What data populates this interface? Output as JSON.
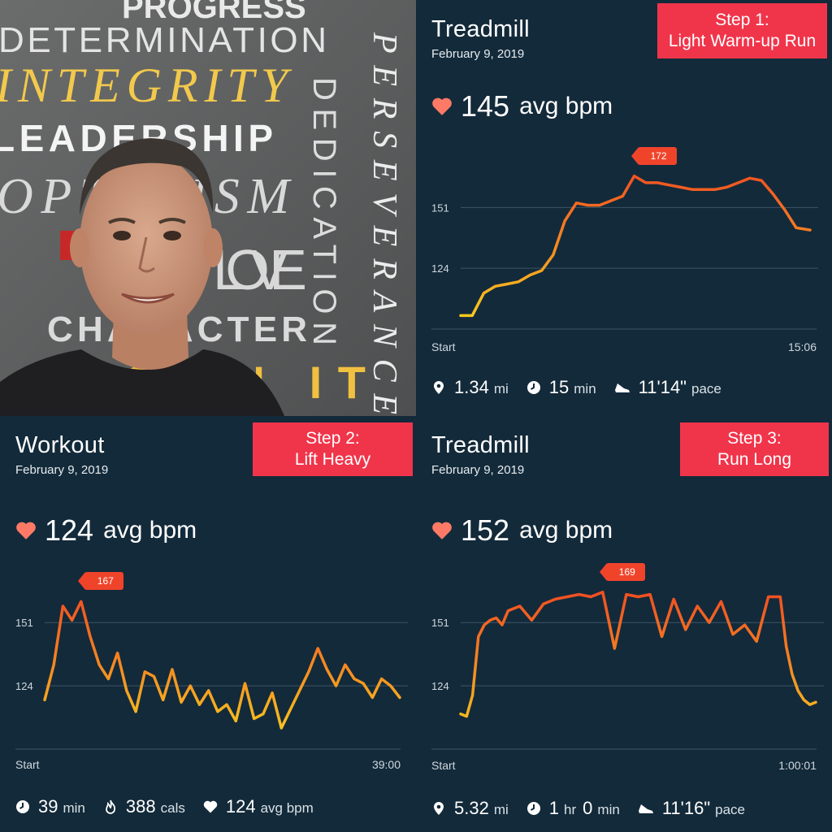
{
  "photo": {
    "words": [
      "PROGRESS",
      "DETERMINATION",
      "INTEGRITY",
      "LEADERSHIP",
      "OPTIMISM",
      "PERSEVERANCE",
      "DEDICATION",
      "LOVE",
      "CHARACTER",
      "OWN IT"
    ]
  },
  "panels": [
    {
      "title": "Treadmill",
      "date": "February 9, 2019",
      "badge": [
        "Step 1:",
        "Light Warm-up Run"
      ],
      "avg_bpm": "145",
      "avg_unit": "avg bpm",
      "peak": "172",
      "y_ticks": [
        "151",
        "124"
      ],
      "x_start": "Start",
      "x_end": "15:06",
      "stats": [
        {
          "icon": "location-pin-icon",
          "value": "1.34",
          "unit": "mi"
        },
        {
          "icon": "clock-icon",
          "value": "15",
          "unit": "min"
        },
        {
          "icon": "shoe-icon",
          "value": "11'14\"",
          "unit": "pace"
        }
      ],
      "chart_data": {
        "type": "line",
        "x": [
          0,
          0.5,
          1,
          1.5,
          2,
          2.5,
          3,
          3.5,
          4,
          4.5,
          5,
          5.5,
          6,
          6.5,
          7,
          7.5,
          8,
          8.5,
          9,
          9.5,
          10,
          10.5,
          11,
          11.5,
          12,
          12.5,
          13,
          13.5,
          14,
          14.5,
          15.1
        ],
        "y": [
          103,
          103,
          113,
          116,
          117,
          118,
          121,
          123,
          130,
          145,
          153,
          152,
          152,
          154,
          156,
          165,
          162,
          162,
          161,
          160,
          159,
          159,
          159,
          160,
          162,
          164,
          163,
          157,
          150,
          142,
          141
        ],
        "xlim": [
          0,
          15.1
        ],
        "ylim": [
          97,
          180
        ],
        "y_ticks": [
          151,
          124
        ]
      }
    },
    {
      "title": "Workout",
      "date": "February 9, 2019",
      "badge": [
        "Step 2:",
        "Lift Heavy"
      ],
      "avg_bpm": "124",
      "avg_unit": "avg bpm",
      "peak": "167",
      "y_ticks": [
        "151",
        "124"
      ],
      "x_start": "Start",
      "x_end": "39:00",
      "stats": [
        {
          "icon": "clock-icon",
          "value": "39",
          "unit": "min"
        },
        {
          "icon": "flame-icon",
          "value": "388",
          "unit": "cals"
        },
        {
          "icon": "heart-outline-icon",
          "value": "124",
          "unit": "avg bpm"
        }
      ],
      "chart_data": {
        "type": "line",
        "x": [
          0,
          1,
          2,
          3,
          4,
          5,
          6,
          7,
          8,
          9,
          10,
          11,
          12,
          13,
          14,
          15,
          16,
          17,
          18,
          19,
          20,
          21,
          22,
          23,
          24,
          25,
          26,
          27,
          28,
          29,
          30,
          31,
          32,
          33,
          34,
          35,
          36,
          37,
          38,
          39
        ],
        "y": [
          118,
          133,
          158,
          152,
          160,
          145,
          133,
          127,
          138,
          122,
          113,
          130,
          128,
          118,
          131,
          117,
          124,
          116,
          122,
          113,
          116,
          109,
          125,
          110,
          112,
          121,
          106,
          114,
          122,
          130,
          140,
          131,
          124,
          133,
          127,
          125,
          119,
          127,
          124,
          119
        ],
        "xlim": [
          0,
          39
        ],
        "ylim": [
          97,
          175
        ],
        "y_ticks": [
          151,
          124
        ]
      }
    },
    {
      "title": "Treadmill",
      "date": "February 9, 2019",
      "badge": [
        "Step 3:",
        "Run Long"
      ],
      "avg_bpm": "152",
      "avg_unit": "avg bpm",
      "peak": "169",
      "y_ticks": [
        "151",
        "124"
      ],
      "x_start": "Start",
      "x_end": "1:00:01",
      "stats": [
        {
          "icon": "location-pin-icon",
          "value": "5.32",
          "unit": "mi"
        },
        {
          "icon": "clock-icon",
          "value": "1",
          "unit": "hr",
          "value2": "0",
          "unit2": "min"
        },
        {
          "icon": "shoe-icon",
          "value": "11'16\"",
          "unit": "pace"
        }
      ],
      "chart_data": {
        "type": "line",
        "x": [
          0,
          1,
          2,
          3,
          4,
          5,
          6,
          7,
          8,
          9,
          10,
          12,
          14,
          16,
          18,
          20,
          22,
          24,
          26,
          28,
          30,
          32,
          34,
          36,
          38,
          40,
          42,
          44,
          46,
          48,
          50,
          52,
          54,
          55,
          56,
          57,
          58,
          59,
          60
        ],
        "y": [
          112,
          111,
          120,
          145,
          150,
          152,
          153,
          150,
          156,
          157,
          158,
          152,
          159,
          161,
          162,
          163,
          162,
          164,
          140,
          163,
          162,
          163,
          145,
          161,
          148,
          158,
          151,
          160,
          146,
          150,
          143,
          162,
          162,
          141,
          129,
          122,
          118,
          116,
          117
        ],
        "xlim": [
          0,
          60
        ],
        "ylim": [
          97,
          175
        ],
        "y_ticks": [
          151,
          124
        ]
      }
    }
  ]
}
